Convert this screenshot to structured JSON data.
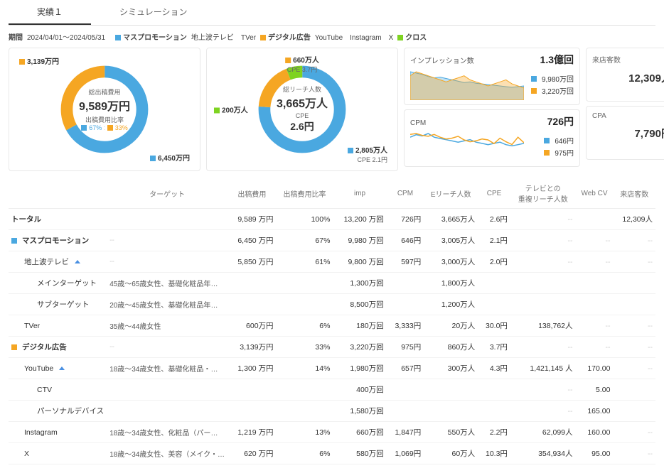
{
  "tabs": {
    "t1": "実績１",
    "t2": "シミュレーション"
  },
  "meta": {
    "period_label": "期間",
    "period_value": "2024/04/01～2024/05/31",
    "g1": "マスプロモーション",
    "g1sub": "地上波テレビ　TVer",
    "g2": "デジタル広告",
    "g2sub": "YouTube　Instagram　X",
    "g3": "クロス"
  },
  "colors": {
    "blue": "#4aa8e0",
    "orange": "#f5a623",
    "green": "#7ed321",
    "blueFill": "rgba(74,168,224,0.35)",
    "orangeFill": "rgba(245,166,35,0.35)",
    "grid": "#eeeeee"
  },
  "donut1": {
    "center_label": "総出稿費用",
    "center_value": "9,589万円",
    "sub_label": "出稿費用比率",
    "ratio_blue": "67%",
    "ratio_orange": "33%",
    "callout_top": "3,139万円",
    "callout_bottom": "6,450万円",
    "pct_blue": 67,
    "pct_orange": 33
  },
  "donut2": {
    "center_label": "総リーチ人数",
    "center_value": "3,665万人",
    "sub_label": "CPE",
    "sub_value": "2.6円",
    "callout_top": "660万人",
    "callout_top_sub": "CPE 3.7円",
    "callout_left": "200万人",
    "callout_bottom": "2,805万人",
    "callout_bottom_sub": "CPE 2.1円",
    "pct_blue": 76,
    "pct_orange": 18,
    "pct_green": 6
  },
  "impressions": {
    "title": "インプレッション数",
    "total": "1.3億回",
    "blue": "9,980万回",
    "orange": "3,220万回",
    "blue_series": [
      42,
      40,
      38,
      35,
      33,
      34,
      32,
      30,
      28,
      26,
      27,
      25,
      24,
      23,
      22,
      21,
      20,
      19,
      20,
      21
    ],
    "orange_series": [
      12,
      14,
      13,
      12,
      11,
      10,
      9,
      10,
      11,
      12,
      10,
      9,
      8,
      7,
      8,
      9,
      10,
      8,
      7,
      6
    ]
  },
  "cpm": {
    "title": "CPM",
    "total": "726円",
    "blue": "646円",
    "orange": "975円",
    "blue_series": [
      20,
      22,
      21,
      23,
      20,
      19,
      18,
      17,
      16,
      17,
      18,
      16,
      15,
      14,
      15,
      16,
      14,
      13,
      14,
      15
    ],
    "orange_series": [
      30,
      31,
      29,
      28,
      30,
      27,
      25,
      26,
      28,
      24,
      22,
      23,
      25,
      24,
      20,
      26,
      22,
      19,
      27,
      21
    ]
  },
  "visitors": {
    "label": "来店客数",
    "value": "12,309人"
  },
  "cpa": {
    "label": "CPA",
    "value": "7,790円"
  },
  "table": {
    "headers": [
      "",
      "ターゲット",
      "出稿費用",
      "出稿費用比率",
      "imp",
      "CPM",
      "Eリーチ人数",
      "CPE",
      "テレビとの\n重複リーチ人数",
      "Web CV",
      "来店客数"
    ],
    "rows": [
      {
        "name": "トータル",
        "indent": 0,
        "target": "",
        "cost": "9,589 万円",
        "ratio": "100%",
        "imp": "13,200 万回",
        "cpm": "726円",
        "reach": "3,665万人",
        "cpe": "2.6円",
        "dup": "--",
        "cv": "",
        "visit": "12,309人"
      },
      {
        "name": "マスプロモーション",
        "indent": 0,
        "sq": "blue",
        "target": "--",
        "cost": "6,450 万円",
        "ratio": "67%",
        "imp": "9,980 万回",
        "cpm": "646円",
        "reach": "3,005万人",
        "cpe": "2.1円",
        "dup": "--",
        "cv": "--",
        "visit": "--"
      },
      {
        "name": "地上波テレビ",
        "indent": 1,
        "caret": true,
        "target": "--",
        "cost": "5,850 万円",
        "ratio": "61%",
        "imp": "9,800 万回",
        "cpm": "597円",
        "reach": "3,000万人",
        "cpe": "2.0円",
        "dup": "--",
        "cv": "--",
        "visit": "--"
      },
      {
        "name": "メインターゲット",
        "indent": 2,
        "target": "45歳～65歳女性、基礎化粧品年間利用…",
        "cost": "",
        "ratio": "",
        "imp": "1,300万回",
        "cpm": "",
        "reach": "1,800万人",
        "cpe": "",
        "dup": "",
        "cv": "",
        "visit": ""
      },
      {
        "name": "サブターゲット",
        "indent": 2,
        "target": "20歳～45歳女性、基礎化粧品年間利用…",
        "cost": "",
        "ratio": "",
        "imp": "8,500万回",
        "cpm": "",
        "reach": "1,200万人",
        "cpe": "",
        "dup": "",
        "cv": "",
        "visit": ""
      },
      {
        "name": "TVer",
        "indent": 1,
        "target": "35歳～44歳女性",
        "cost": "600万円",
        "ratio": "6%",
        "imp": "180万回",
        "cpm": "3,333円",
        "reach": "20万人",
        "cpe": "30.0円",
        "dup": "138,762人",
        "cv": "--",
        "visit": "--"
      },
      {
        "name": "デジタル広告",
        "indent": 0,
        "sq": "orange",
        "target": "--",
        "cost": "3,139万円",
        "ratio": "33%",
        "imp": "3,220万回",
        "cpm": "975円",
        "reach": "860万人",
        "cpe": "3.7円",
        "dup": "--",
        "cv": "--",
        "visit": "--"
      },
      {
        "name": "YouTube",
        "indent": 1,
        "caret": true,
        "target": "18歳～34歳女性、基礎化粧品・新作コ…",
        "cost": "1,300 万円",
        "ratio": "14%",
        "imp": "1,980万回",
        "cpm": "657円",
        "reach": "300万人",
        "cpe": "4.3円",
        "dup": "1,421,145 人",
        "cv": "170.00",
        "visit": "--"
      },
      {
        "name": "CTV",
        "indent": 2,
        "target": "",
        "cost": "",
        "ratio": "",
        "imp": "400万回",
        "cpm": "",
        "reach": "",
        "cpe": "",
        "dup": "--",
        "cv": "5.00",
        "visit": ""
      },
      {
        "name": "パーソナルデバイス",
        "indent": 2,
        "target": "",
        "cost": "",
        "ratio": "",
        "imp": "1,580万回",
        "cpm": "",
        "reach": "",
        "cpe": "",
        "dup": "--",
        "cv": "165.00",
        "visit": ""
      },
      {
        "name": "Instagram",
        "indent": 1,
        "target": "18歳～34歳女性、化粧品（パーソナル…",
        "cost": "1,219 万円",
        "ratio": "13%",
        "imp": "660万回",
        "cpm": "1,847円",
        "reach": "550万人",
        "cpe": "2.2円",
        "dup": "62,099人",
        "cv": "160.00",
        "visit": "--"
      },
      {
        "name": "X",
        "indent": 1,
        "target": "18歳～34歳女性、美容（メイク・コス…",
        "cost": "620 万円",
        "ratio": "6%",
        "imp": "580万回",
        "cpm": "1,069円",
        "reach": "60万人",
        "cpe": "10.3円",
        "dup": "354,934人",
        "cv": "95.00",
        "visit": "--"
      }
    ]
  }
}
